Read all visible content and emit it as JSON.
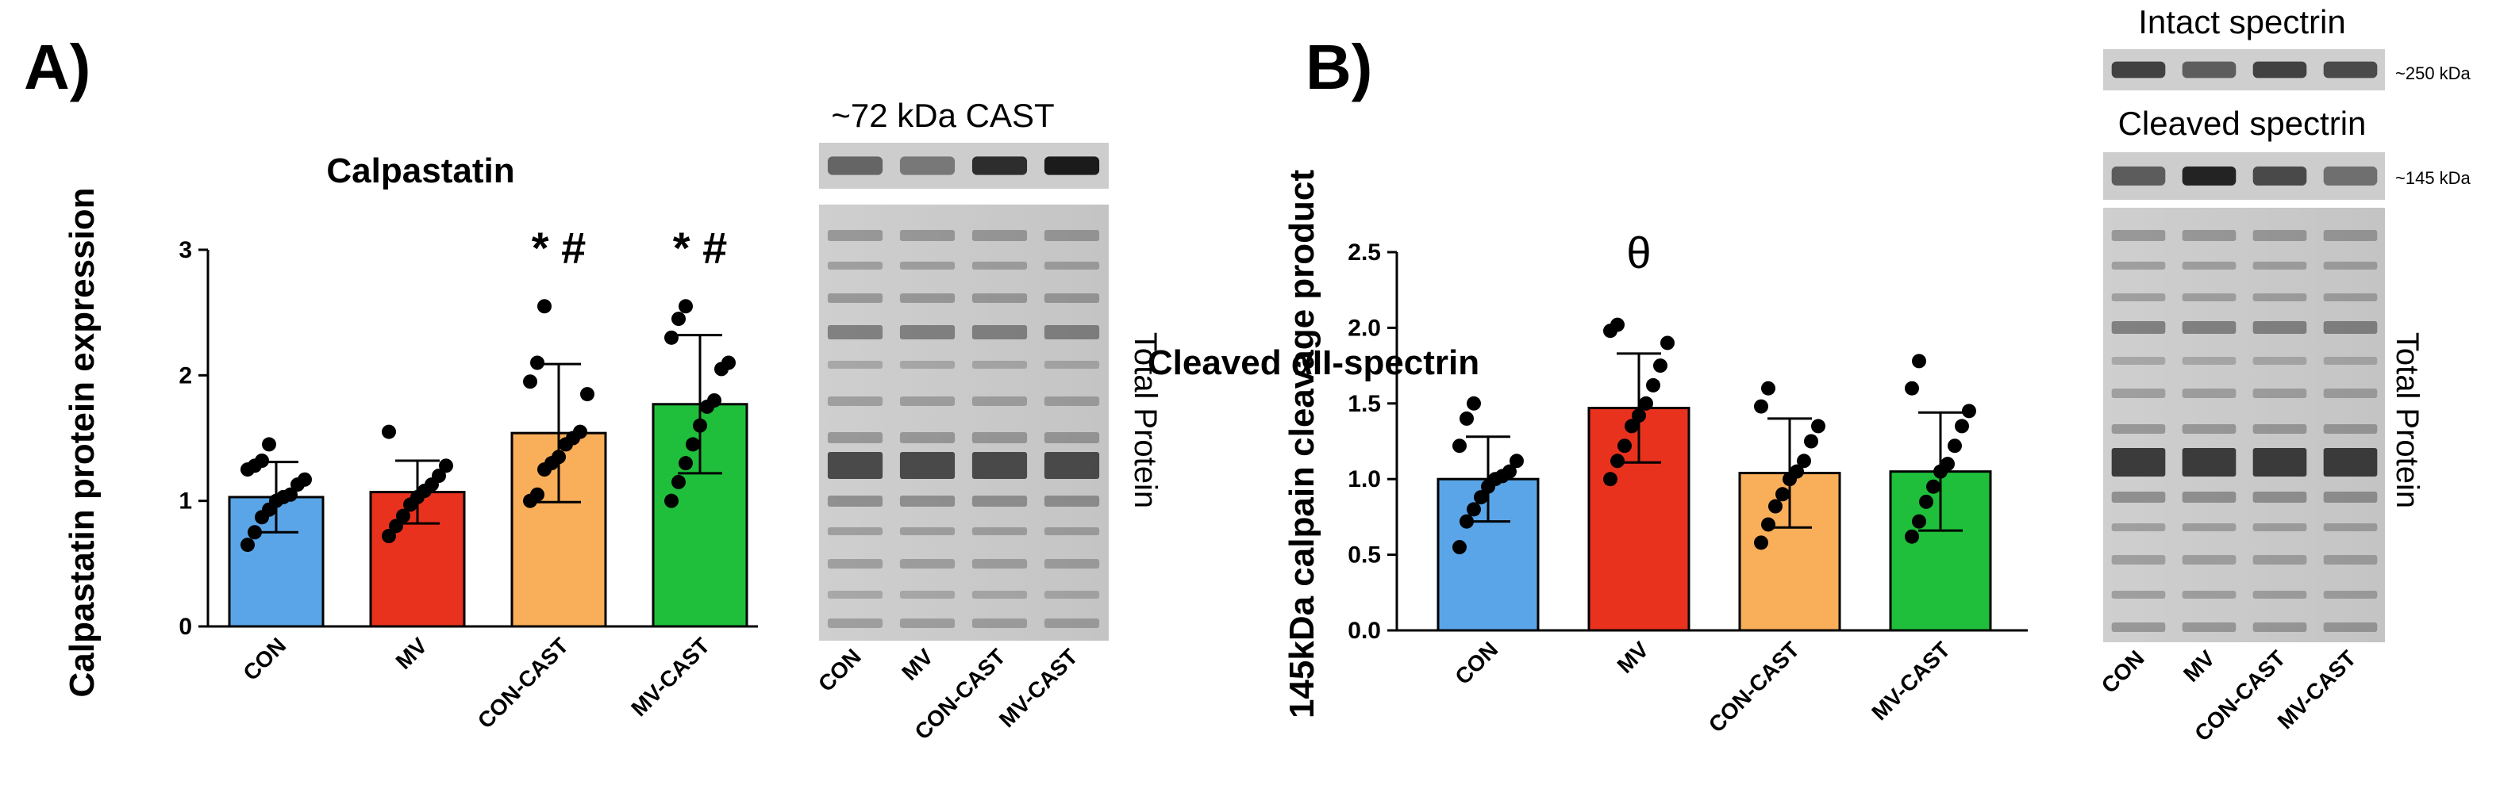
{
  "panels": [
    {
      "letter": "A)"
    },
    {
      "letter": "B)"
    }
  ],
  "blots": {
    "a": {
      "band_label": "~72 kDa CAST",
      "total_label": "Total Protein",
      "lanes": [
        "CON",
        "MV",
        "CON-CAST",
        "MV-CAST"
      ]
    },
    "b": {
      "intact_label": "Intact spectrin",
      "intact_kda": "~250 kDa",
      "cleaved_label": "Cleaved spectrin",
      "cleaved_kda": "~145 kDa",
      "total_label": "Total Protein",
      "lanes": [
        "CON",
        "MV",
        "CON-CAST",
        "MV-CAST"
      ]
    }
  },
  "chart_data": [
    {
      "type": "bar",
      "title": "Calpastatin",
      "xlabel": "",
      "ylabel": "Calpastatin protein expression",
      "ylim": [
        0,
        3
      ],
      "yticks": [
        0,
        1,
        2,
        3
      ],
      "categories": [
        "CON",
        "MV",
        "CON-CAST",
        "MV-CAST"
      ],
      "values": [
        1.03,
        1.07,
        1.54,
        1.77
      ],
      "error": [
        0.28,
        0.25,
        0.55,
        0.55
      ],
      "colors": [
        "#5aa5e8",
        "#e8321e",
        "#f9ae5a",
        "#1fbf3b"
      ],
      "annotations": [
        "",
        "",
        "* #",
        "* #"
      ],
      "points": [
        [
          0.65,
          0.75,
          0.87,
          0.93,
          1.0,
          1.03,
          1.05,
          1.13,
          1.17,
          1.25,
          1.28,
          1.32,
          1.45
        ],
        [
          0.72,
          0.8,
          0.88,
          0.97,
          1.03,
          1.08,
          1.13,
          1.2,
          1.28,
          1.55
        ],
        [
          1.0,
          1.05,
          1.25,
          1.3,
          1.35,
          1.45,
          1.5,
          1.55,
          1.85,
          1.95,
          2.1,
          2.55
        ],
        [
          1.0,
          1.15,
          1.3,
          1.45,
          1.6,
          1.75,
          1.8,
          2.05,
          2.1,
          2.3,
          2.45,
          2.55
        ]
      ]
    },
    {
      "type": "bar",
      "title": "Cleaved αII-spectrin",
      "xlabel": "",
      "ylabel": "145kDa calpain cleavage product",
      "ylim": [
        0,
        2.5
      ],
      "yticks": [
        0.0,
        0.5,
        1.0,
        1.5,
        2.0,
        2.5
      ],
      "categories": [
        "CON",
        "MV",
        "CON-CAST",
        "MV-CAST"
      ],
      "values": [
        1.0,
        1.47,
        1.04,
        1.05
      ],
      "error": [
        0.28,
        0.36,
        0.36,
        0.39
      ],
      "colors": [
        "#5aa5e8",
        "#e8321e",
        "#f9ae5a",
        "#1fbf3b"
      ],
      "annotations": [
        "",
        "θ",
        "",
        ""
      ],
      "points": [
        [
          0.55,
          0.72,
          0.8,
          0.88,
          0.95,
          1.0,
          1.02,
          1.05,
          1.12,
          1.22,
          1.4,
          1.5
        ],
        [
          1.0,
          1.12,
          1.22,
          1.35,
          1.42,
          1.5,
          1.62,
          1.75,
          1.9,
          1.98,
          2.02
        ],
        [
          0.58,
          0.7,
          0.82,
          0.9,
          1.0,
          1.05,
          1.12,
          1.25,
          1.35,
          1.48,
          1.6
        ],
        [
          0.62,
          0.72,
          0.85,
          0.95,
          1.05,
          1.1,
          1.22,
          1.35,
          1.45,
          1.6,
          1.78
        ]
      ]
    }
  ]
}
